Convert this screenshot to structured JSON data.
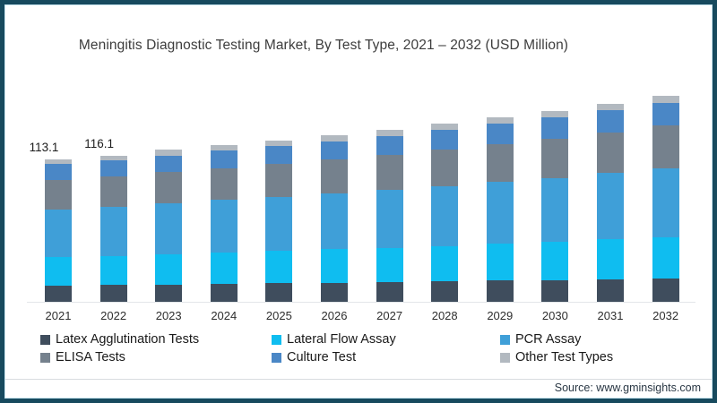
{
  "title": "Meningitis Diagnostic Testing Market, By Test Type, 2021 – 2032 (USD Million)",
  "source": "Source: www.gminsights.com",
  "frame": {
    "border_color": "#174a5e",
    "inner_line_color": "#c9e5f0",
    "background": "#ffffff"
  },
  "chart_data": {
    "type": "bar",
    "stacked": true,
    "title": "Meningitis Diagnostic Testing Market, By Test Type, 2021 – 2032 (USD Million)",
    "unit": "USD Million",
    "xlabel": "",
    "ylabel": "",
    "grid": false,
    "legend_position": "bottom",
    "categories": [
      "2021",
      "2022",
      "2023",
      "2024",
      "2025",
      "2026",
      "2027",
      "2028",
      "2029",
      "2030",
      "2031",
      "2032"
    ],
    "series": [
      {
        "name": "Latex Agglutination Tests",
        "color": "#3f4d5d",
        "values": [
          13.0,
          13.3,
          13.8,
          14.3,
          14.7,
          15.2,
          15.7,
          16.2,
          16.8,
          17.4,
          18.1,
          18.8
        ]
      },
      {
        "name": "Lateral Flow Assay",
        "color": "#0fbdf0",
        "values": [
          22.6,
          23.2,
          24.1,
          24.8,
          25.6,
          26.4,
          27.3,
          28.2,
          29.2,
          30.3,
          31.4,
          32.7
        ]
      },
      {
        "name": "PCR Assay",
        "color": "#3f9fd8",
        "values": [
          37.9,
          38.9,
          40.3,
          41.6,
          42.9,
          44.3,
          45.7,
          47.3,
          49.0,
          50.7,
          52.7,
          54.7
        ]
      },
      {
        "name": "ELISA Tests",
        "color": "#75818d",
        "values": [
          23.2,
          23.8,
          24.7,
          25.5,
          26.3,
          27.1,
          28.0,
          28.9,
          30.0,
          31.0,
          32.2,
          33.5
        ]
      },
      {
        "name": "Culture Test",
        "color": "#4a87c6",
        "values": [
          12.4,
          12.8,
          13.2,
          13.7,
          14.1,
          14.5,
          15.0,
          15.5,
          16.1,
          16.7,
          17.3,
          18.0
        ]
      },
      {
        "name": "Other Test Types",
        "color": "#b2b9c0",
        "values": [
          4.0,
          4.1,
          4.3,
          4.3,
          4.5,
          4.7,
          4.8,
          5.1,
          5.1,
          5.3,
          5.5,
          5.6
        ]
      }
    ],
    "totals": [
      113.1,
      116.1,
      120.4,
      124.2,
      128.1,
      132.2,
      136.5,
      141.2,
      146.2,
      151.4,
      157.2,
      163.3
    ],
    "data_labels": {
      "2021": "113.1",
      "2022": "116.1"
    }
  }
}
